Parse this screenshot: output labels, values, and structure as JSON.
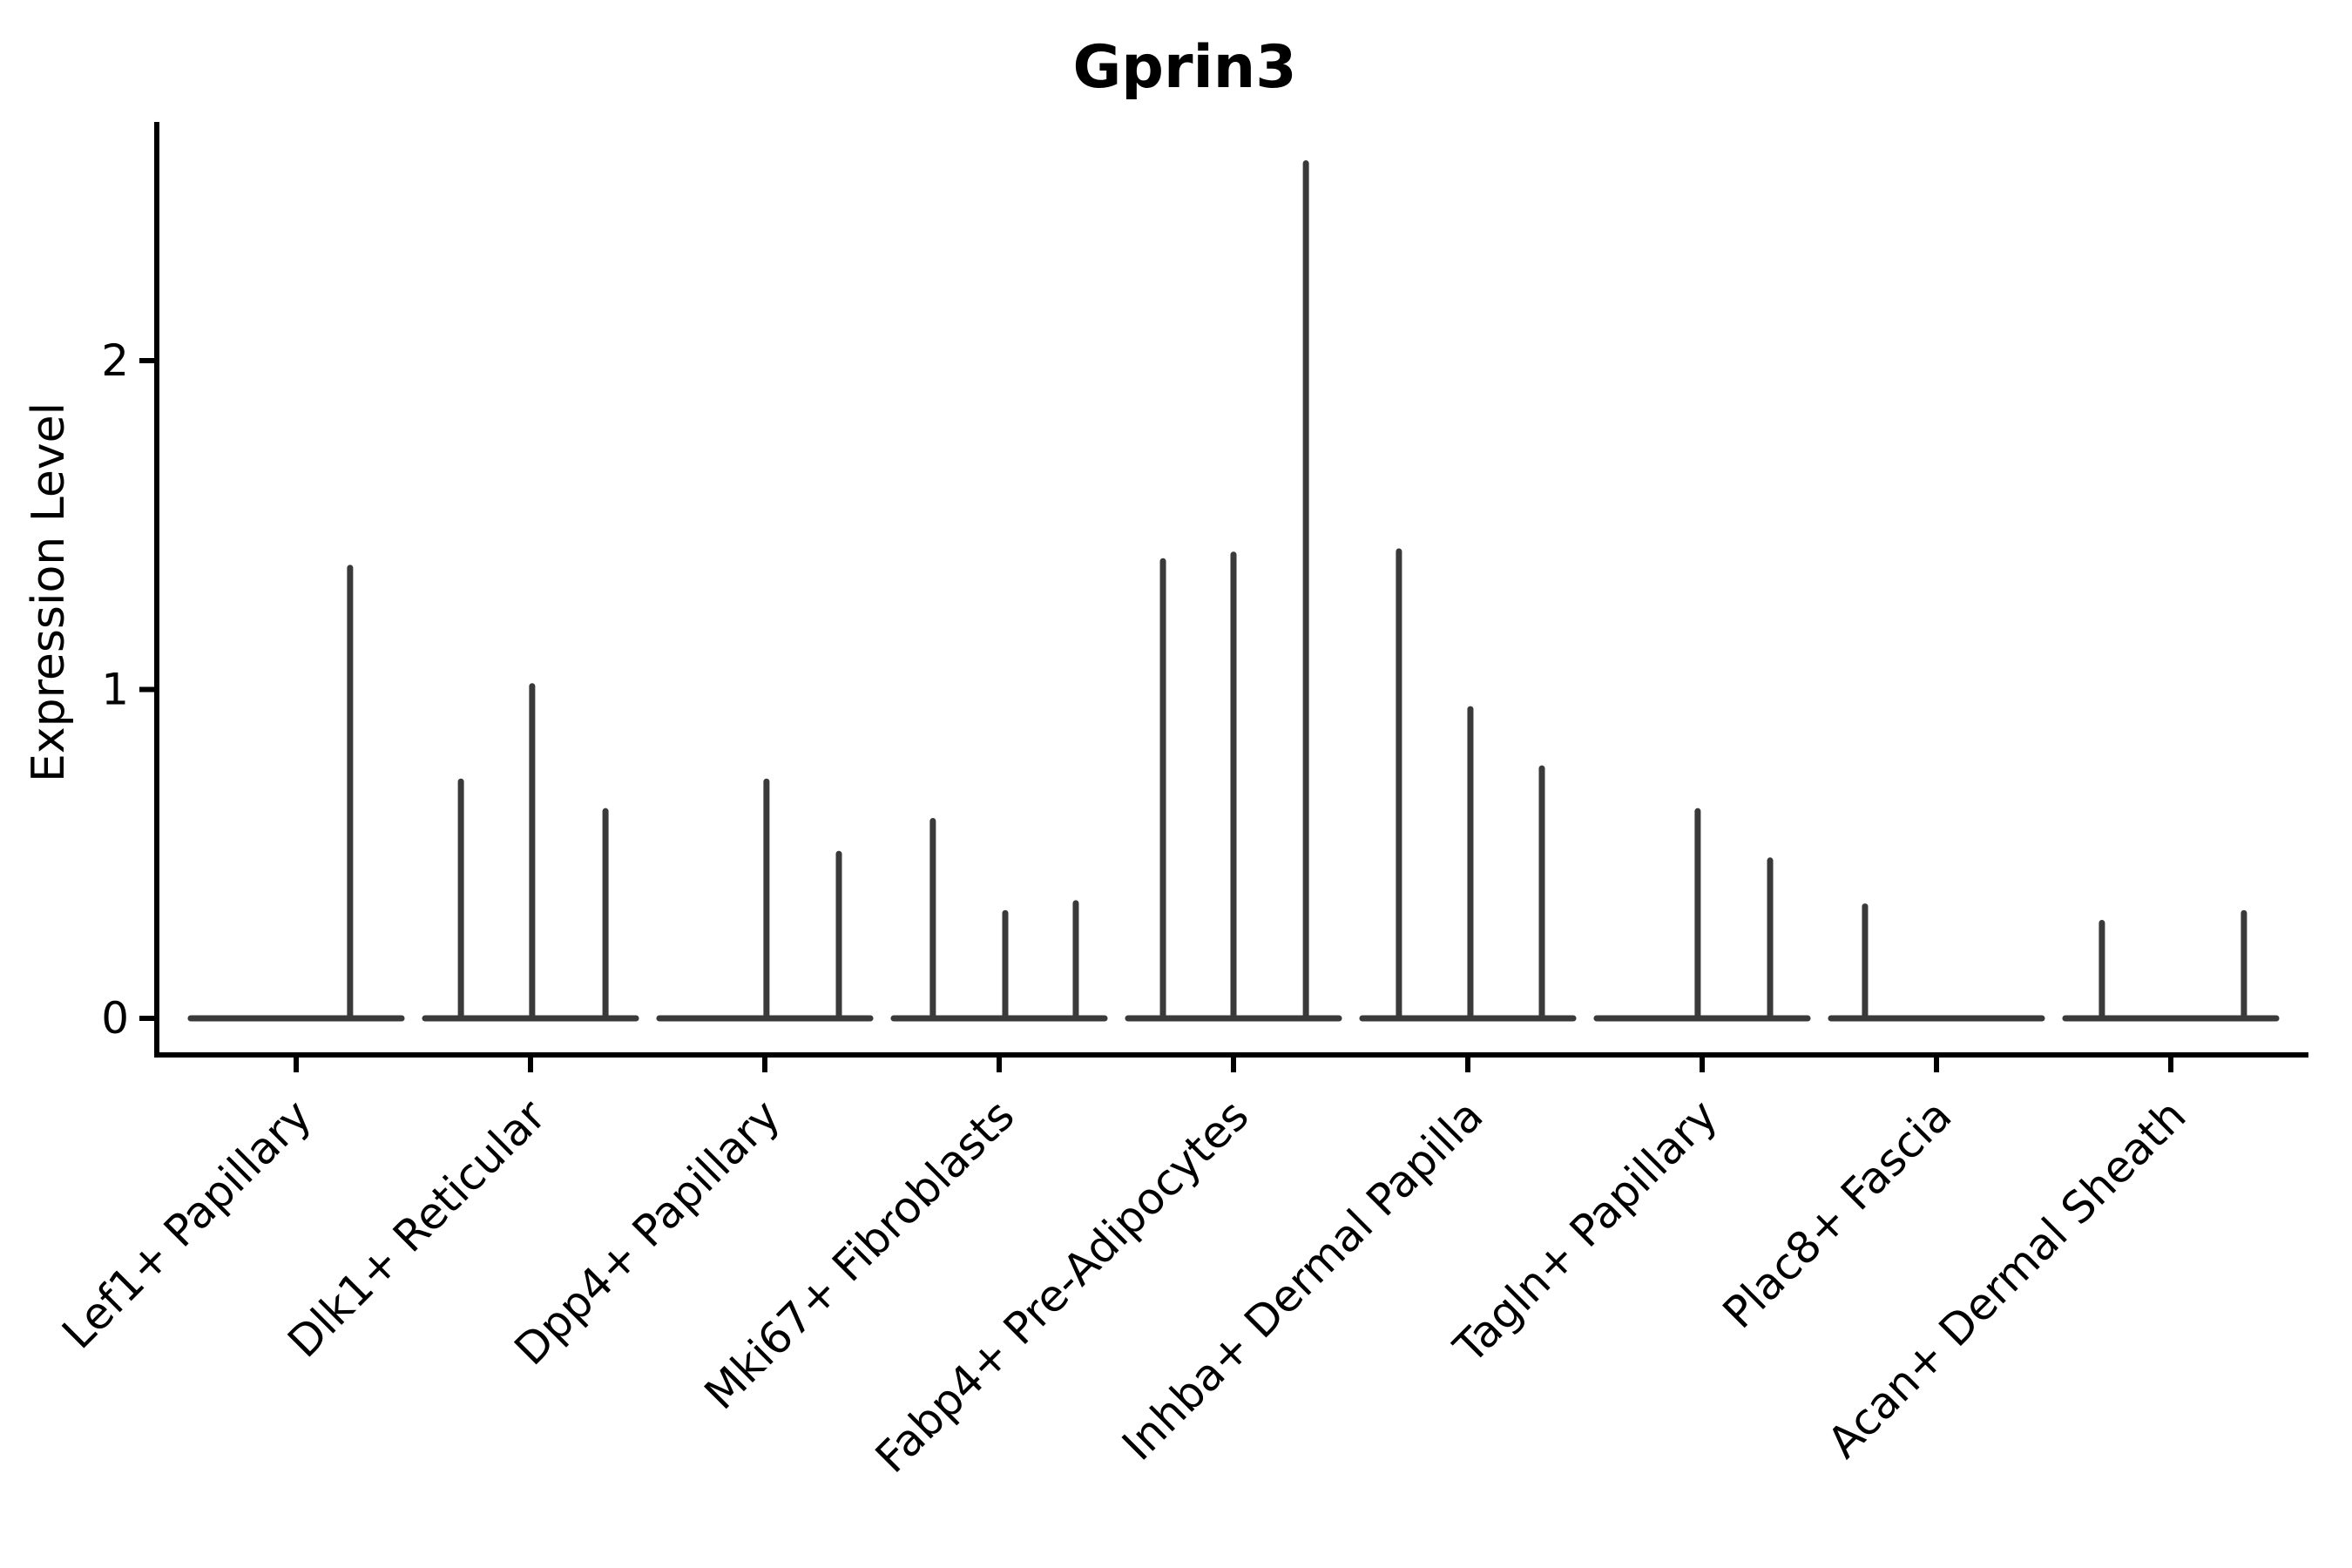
{
  "chart_data": {
    "type": "violin",
    "title": "Gprin3",
    "xlabel": "",
    "ylabel": "Expression Level",
    "ylim": [
      0,
      2.73
    ],
    "yticks": [
      0,
      1,
      2
    ],
    "grid": false,
    "legend": "none",
    "x_tick_rotation": 45,
    "categories": [
      "Lef1+ Papillary",
      "Dlk1+ Reticular",
      "Dpp4+ Papillary",
      "Mki67+ Fibroblasts",
      "Fabp4+ Pre-Adipocytes",
      "Inhba+ Dermal Papilla",
      "Tagln+ Papillary",
      "Plac8+ Fascia",
      "Acan+ Dermal Sheath"
    ],
    "groups": [
      {
        "category": "Lef1+ Papillary",
        "baseline_value": 0,
        "spikes": [
          {
            "offset": 0.23,
            "value": 1.37
          }
        ]
      },
      {
        "category": "Dlk1+ Reticular",
        "baseline_value": 0,
        "spikes": [
          {
            "offset": -0.297,
            "value": 0.72
          },
          {
            "offset": 0.007,
            "value": 1.01
          },
          {
            "offset": 0.32,
            "value": 0.63
          }
        ]
      },
      {
        "category": "Dpp4+ Papillary",
        "baseline_value": 0,
        "spikes": [
          {
            "offset": 0.007,
            "value": 0.72
          },
          {
            "offset": 0.316,
            "value": 0.5
          }
        ]
      },
      {
        "category": "Mki67+ Fibroblasts",
        "baseline_value": 0,
        "spikes": [
          {
            "offset": -0.283,
            "value": 0.6
          },
          {
            "offset": 0.026,
            "value": 0.32
          },
          {
            "offset": 0.327,
            "value": 0.35
          }
        ]
      },
      {
        "category": "Fabp4+ Pre-Adipocytes",
        "baseline_value": 0,
        "spikes": [
          {
            "offset": -0.301,
            "value": 1.39
          },
          {
            "offset": 0.0,
            "value": 1.41
          },
          {
            "offset": 0.309,
            "value": 2.6
          }
        ]
      },
      {
        "category": "Inhba+ Dermal Papilla",
        "baseline_value": 0,
        "spikes": [
          {
            "offset": -0.294,
            "value": 1.42
          },
          {
            "offset": 0.011,
            "value": 0.94
          },
          {
            "offset": 0.316,
            "value": 0.76
          }
        ]
      },
      {
        "category": "Tagln+ Papillary",
        "baseline_value": 0,
        "spikes": [
          {
            "offset": -0.019,
            "value": 0.63
          },
          {
            "offset": 0.29,
            "value": 0.48
          }
        ]
      },
      {
        "category": "Plac8+ Fascia",
        "baseline_value": 0,
        "spikes": [
          {
            "offset": -0.305,
            "value": 0.34
          }
        ]
      },
      {
        "category": "Acan+ Dermal Sheath",
        "baseline_value": 0,
        "spikes": [
          {
            "offset": -0.294,
            "value": 0.29
          },
          {
            "offset": 0.312,
            "value": 0.32
          }
        ]
      }
    ],
    "violin_halfwidth_frac": 0.45,
    "colors": {
      "violin_line": "#3a3a3a",
      "axis": "#000000",
      "text": "#000000",
      "background": "#ffffff"
    }
  }
}
